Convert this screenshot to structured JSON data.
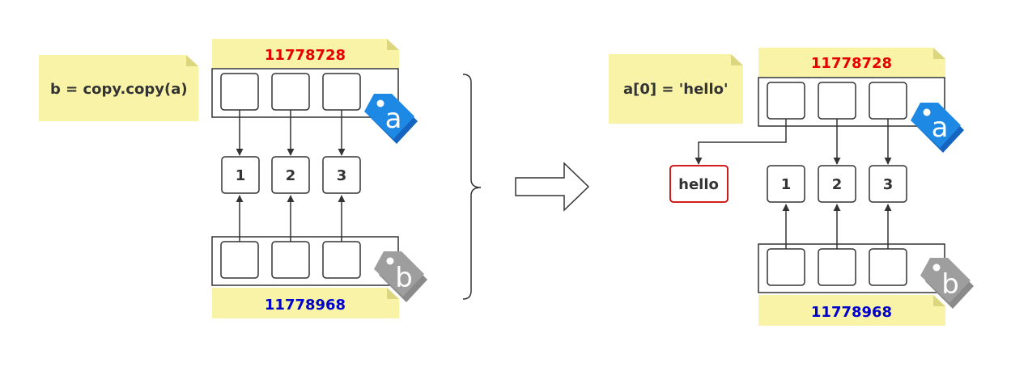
{
  "left": {
    "note": "b = copy.copy(a)",
    "addr_a": "11778728",
    "addr_b": "11778968",
    "values": [
      "1",
      "2",
      "3"
    ],
    "tag_a": "a",
    "tag_b": "b"
  },
  "right": {
    "note": "a[0] = 'hello'",
    "addr_a": "11778728",
    "addr_b": "11778968",
    "values": [
      "1",
      "2",
      "3"
    ],
    "new_value": "hello",
    "tag_a": "a",
    "tag_b": "b"
  },
  "colors": {
    "note_bg": "#f9f3a8",
    "note_fold": "#dcd67e",
    "addr_a": "#e60000",
    "addr_b": "#0000cc",
    "tag_a": "#1e88e5",
    "tag_b": "#9e9e9e",
    "hello_border": "#cc0000",
    "line": "#333333"
  }
}
